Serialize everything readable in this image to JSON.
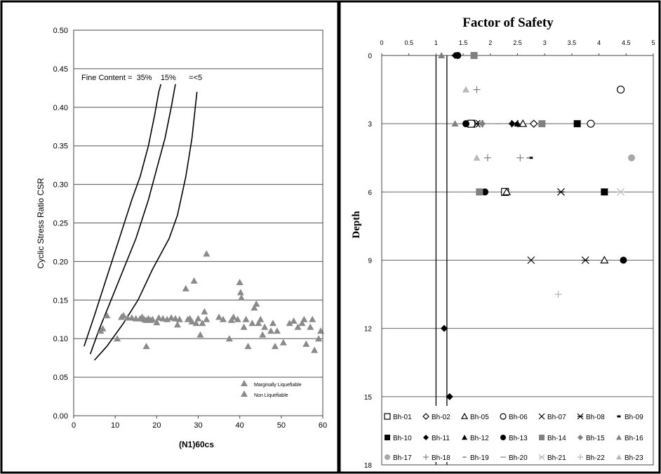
{
  "chart_data": [
    {
      "type": "scatter",
      "title": "",
      "xlabel": "(N1)60cs",
      "ylabel": "Cyclic Stress Ratio CSR",
      "xlim": [
        0,
        60
      ],
      "ylim": [
        0,
        0.5
      ],
      "xticks": [
        "0",
        "10",
        "20",
        "30",
        "40",
        "50",
        "60"
      ],
      "yticks": [
        "0.00",
        "0.05",
        "0.10",
        "0.15",
        "0.20",
        "0.25",
        "0.30",
        "0.35",
        "0.40",
        "0.45",
        "0.50"
      ],
      "grid": "horizontal",
      "legend_position": "bottom-right",
      "annotation": "Fine Content =  35%    15%      =<5",
      "curves": [
        {
          "name": "35%",
          "points": [
            [
              2.5,
              0.09
            ],
            [
              5,
              0.13
            ],
            [
              8,
              0.18
            ],
            [
              11,
              0.23
            ],
            [
              14,
              0.28
            ],
            [
              16,
              0.31
            ],
            [
              18,
              0.35
            ],
            [
              19.5,
              0.39
            ],
            [
              20.5,
              0.42
            ],
            [
              21,
              0.43
            ]
          ]
        },
        {
          "name": "15%",
          "points": [
            [
              4,
              0.08
            ],
            [
              6,
              0.11
            ],
            [
              9,
              0.15
            ],
            [
              12,
              0.19
            ],
            [
              15,
              0.23
            ],
            [
              18,
              0.28
            ],
            [
              20,
              0.32
            ],
            [
              22,
              0.36
            ],
            [
              23.5,
              0.4
            ],
            [
              24.5,
              0.43
            ]
          ]
        },
        {
          "name": "=<5",
          "points": [
            [
              5,
              0.072
            ],
            [
              8,
              0.09
            ],
            [
              12,
              0.12
            ],
            [
              15.5,
              0.15
            ],
            [
              19,
              0.19
            ],
            [
              23,
              0.23
            ],
            [
              25,
              0.26
            ],
            [
              27,
              0.31
            ],
            [
              28.5,
              0.36
            ],
            [
              29.5,
              0.41
            ],
            [
              29.7,
              0.42
            ]
          ]
        }
      ],
      "series": [
        {
          "name": "Marginally Liquefiable",
          "color": "#8a8a8a",
          "marker": "triangle",
          "points": [
            [
              6.5,
              0.11
            ],
            [
              7,
              0.113
            ],
            [
              8,
              0.13
            ],
            [
              10.5,
              0.1
            ],
            [
              11.5,
              0.128
            ],
            [
              12,
              0.13
            ],
            [
              13,
              0.127
            ],
            [
              14,
              0.127
            ],
            [
              15,
              0.126
            ],
            [
              16,
              0.126
            ],
            [
              16.5,
              0.128
            ],
            [
              17,
              0.125
            ],
            [
              17.5,
              0.124
            ],
            [
              17.5,
              0.09
            ],
            [
              18,
              0.126
            ],
            [
              18.5,
              0.124
            ],
            [
              19,
              0.125
            ],
            [
              20,
              0.121
            ],
            [
              20.5,
              0.127
            ],
            [
              21.5,
              0.126
            ],
            [
              22.5,
              0.125
            ],
            [
              23.5,
              0.127
            ],
            [
              24.5,
              0.126
            ],
            [
              25,
              0.118
            ],
            [
              25.5,
              0.125
            ],
            [
              27,
              0.165
            ],
            [
              27.5,
              0.125
            ],
            [
              28,
              0.126
            ],
            [
              28.5,
              0.122
            ],
            [
              29,
              0.175
            ],
            [
              29.5,
              0.12
            ],
            [
              30,
              0.126
            ],
            [
              30.5,
              0.105
            ],
            [
              31,
              0.12
            ],
            [
              31.5,
              0.135
            ],
            [
              32,
              0.125
            ],
            [
              35,
              0.128
            ],
            [
              36,
              0.125
            ],
            [
              37.5,
              0.1
            ],
            [
              38,
              0.124
            ],
            [
              38.5,
              0.128
            ],
            [
              39.5,
              0.125
            ],
            [
              40,
              0.173
            ],
            [
              40.2,
              0.16
            ],
            [
              40.4,
              0.153
            ],
            [
              41,
              0.115
            ],
            [
              41.5,
              0.125
            ],
            [
              42,
              0.09
            ],
            [
              43,
              0.12
            ],
            [
              43.5,
              0.14
            ],
            [
              44,
              0.145
            ],
            [
              44.5,
              0.12
            ],
            [
              45,
              0.125
            ],
            [
              45.5,
              0.105
            ],
            [
              46,
              0.115
            ],
            [
              47.5,
              0.11
            ],
            [
              48,
              0.12
            ],
            [
              48.5,
              0.09
            ],
            [
              49,
              0.11
            ],
            [
              50.5,
              0.095
            ],
            [
              52,
              0.12
            ],
            [
              53,
              0.123
            ],
            [
              54,
              0.115
            ],
            [
              55,
              0.12
            ],
            [
              55.5,
              0.125
            ],
            [
              56,
              0.093
            ],
            [
              57,
              0.115
            ],
            [
              57.5,
              0.125
            ],
            [
              58,
              0.085
            ],
            [
              59,
              0.1
            ],
            [
              59.5,
              0.11
            ]
          ]
        },
        {
          "name": "Non Liquefiable",
          "color": "#8a8a8a",
          "marker": "triangle",
          "points": [
            [
              32,
              0.21
            ]
          ]
        }
      ]
    },
    {
      "type": "scatter",
      "title": "Factor of Safety",
      "xlabel": "",
      "ylabel": "Depth",
      "xlim": [
        0,
        5
      ],
      "ylim": [
        0,
        18
      ],
      "y_inverted": true,
      "x_axis_position": "top",
      "xticks": [
        "0",
        "0.5",
        "1",
        "1.5",
        "2",
        "2.5",
        "3",
        "3.5",
        "4",
        "4.5",
        "5"
      ],
      "yticks": [
        "0",
        "3",
        "6",
        "9",
        "12",
        "15",
        "18"
      ],
      "grid": "horizontal",
      "legend_position": "bottom",
      "reference_lines_x": [
        1.0,
        1.2
      ],
      "series": [
        {
          "name": "Bh-01",
          "marker": "square-open",
          "color": "#000000",
          "points": [
            [
              1.65,
              3
            ],
            [
              2.27,
              6
            ]
          ]
        },
        {
          "name": "Bh-02",
          "marker": "diamond-open",
          "color": "#000000",
          "points": [
            [
              2.8,
              3
            ]
          ]
        },
        {
          "name": "Bh-05",
          "marker": "triangle-open",
          "color": "#000000",
          "points": [
            [
              2.6,
              3
            ],
            [
              2.3,
              6
            ],
            [
              4.1,
              9
            ]
          ]
        },
        {
          "name": "Bh-06",
          "marker": "circle-open",
          "color": "#000000",
          "points": [
            [
              4.4,
              1.5
            ],
            [
              3.85,
              3
            ]
          ]
        },
        {
          "name": "Bh-07",
          "marker": "x",
          "color": "#000000",
          "points": [
            [
              1.75,
              3
            ],
            [
              2.45,
              3
            ],
            [
              2.75,
              9
            ]
          ]
        },
        {
          "name": "Bh-08",
          "marker": "asterisk",
          "color": "#000000",
          "points": [
            [
              1.8,
              3
            ],
            [
              3.3,
              6
            ],
            [
              3.75,
              9
            ]
          ]
        },
        {
          "name": "Bh-09",
          "marker": "dash-thick",
          "color": "#000000",
          "points": [
            [
              2.75,
              4.5
            ]
          ]
        },
        {
          "name": "Bh-10",
          "marker": "square",
          "color": "#000000",
          "points": [
            [
              3.6,
              3
            ],
            [
              4.1,
              6
            ]
          ]
        },
        {
          "name": "Bh-11",
          "marker": "diamond",
          "color": "#000000",
          "points": [
            [
              1.35,
              0
            ],
            [
              2.4,
              3
            ],
            [
              1.15,
              12
            ],
            [
              1.25,
              15
            ]
          ]
        },
        {
          "name": "Bh-12",
          "marker": "triangle",
          "color": "#000000",
          "points": [
            [
              2.5,
              3
            ]
          ]
        },
        {
          "name": "Bh-13",
          "marker": "circle",
          "color": "#000000",
          "points": [
            [
              1.4,
              0
            ],
            [
              1.55,
              3
            ],
            [
              1.9,
              6
            ],
            [
              4.45,
              9
            ]
          ]
        },
        {
          "name": "Bh-14",
          "marker": "square",
          "color": "#808080",
          "points": [
            [
              1.7,
              0
            ],
            [
              2.95,
              3
            ],
            [
              1.8,
              6
            ]
          ]
        },
        {
          "name": "Bh-15",
          "marker": "diamond",
          "color": "#808080",
          "points": [
            [
              1.85,
              3
            ]
          ]
        },
        {
          "name": "Bh-16",
          "marker": "triangle",
          "color": "#808080",
          "points": [
            [
              1.1,
              0
            ],
            [
              1.35,
              3
            ]
          ]
        },
        {
          "name": "Bh-17",
          "marker": "circle",
          "color": "#a8a8a8",
          "points": [
            [
              4.6,
              4.5
            ]
          ]
        },
        {
          "name": "Bh-18",
          "marker": "plus",
          "color": "#808080",
          "points": [
            [
              1.75,
              1.5
            ],
            [
              1.95,
              4.5
            ],
            [
              2.55,
              4.5
            ]
          ]
        },
        {
          "name": "Bh-19",
          "marker": "dash-thin",
          "color": "#808080",
          "points": [
            [
              2.7,
              4.5
            ]
          ]
        },
        {
          "name": "Bh-20",
          "marker": "dash-long",
          "color": "#808080",
          "points": [
            [
              2.15,
              3
            ]
          ]
        },
        {
          "name": "Bh-21",
          "marker": "asterisk",
          "color": "#b8b8b8",
          "points": [
            [
              4.4,
              6
            ]
          ]
        },
        {
          "name": "Bh-22",
          "marker": "plus",
          "color": "#b0b0b0",
          "points": [
            [
              3.25,
              10.5
            ]
          ]
        },
        {
          "name": "Bh-23",
          "marker": "triangle",
          "color": "#b8b8b8",
          "points": [
            [
              1.55,
              1.5
            ],
            [
              1.75,
              4.5
            ]
          ]
        }
      ]
    }
  ]
}
